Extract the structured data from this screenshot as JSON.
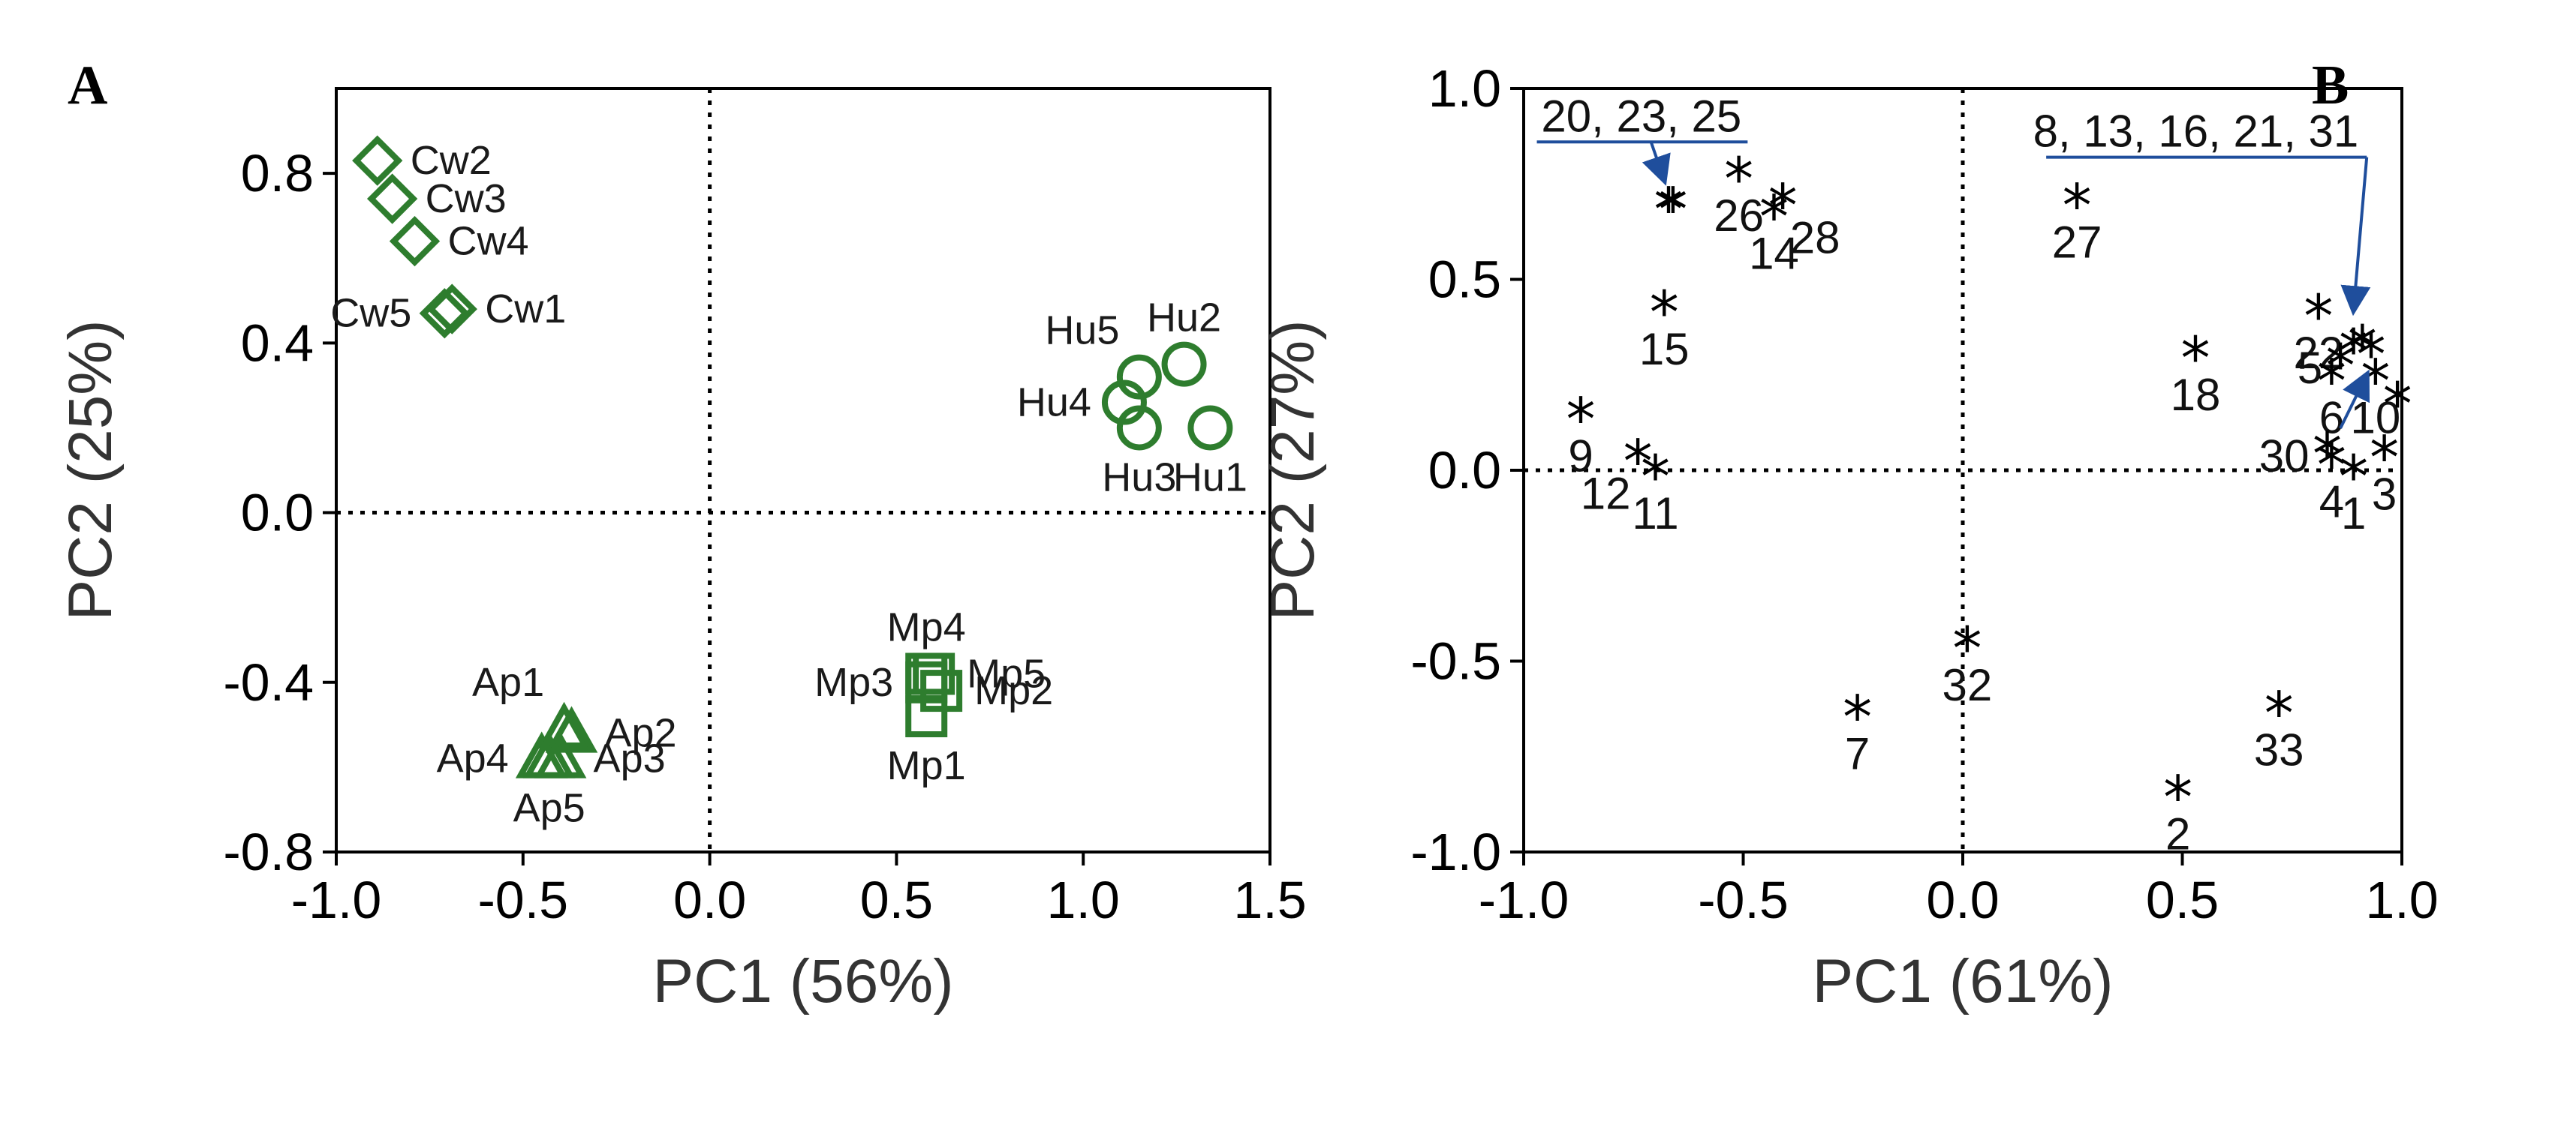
{
  "colors": {
    "marker": "#2e7d2e",
    "callout": "#1f4e9c",
    "axis": "#000000"
  },
  "chart_data": [
    {
      "panel": "A",
      "type": "scatter",
      "xlabel": "PC1 (56%)",
      "ylabel": "PC2 (25%)",
      "xlim": [
        -1.0,
        1.5
      ],
      "ylim": [
        -0.8,
        1.0
      ],
      "xticks": [
        {
          "v": -1.0,
          "t": "-1.0"
        },
        {
          "v": -0.5,
          "t": "-0.5"
        },
        {
          "v": 0.0,
          "t": "0.0"
        },
        {
          "v": 0.5,
          "t": "0.5"
        },
        {
          "v": 1.0,
          "t": "1.0"
        },
        {
          "v": 1.5,
          "t": "1.5"
        }
      ],
      "yticks": [
        {
          "v": 0.8,
          "t": "0.8"
        },
        {
          "v": 0.4,
          "t": "0.4"
        },
        {
          "v": 0.0,
          "t": "0.0"
        },
        {
          "v": -0.4,
          "t": "-0.4"
        },
        {
          "v": -0.8,
          "t": "-0.8"
        }
      ],
      "series": [
        {
          "name": "Cw",
          "marker": "diamond",
          "points": [
            {
              "label": "Cw1",
              "x": -0.69,
              "y": 0.48,
              "pos": "right"
            },
            {
              "label": "Cw2",
              "x": -0.89,
              "y": 0.83,
              "pos": "right"
            },
            {
              "label": "Cw3",
              "x": -0.85,
              "y": 0.74,
              "pos": "right"
            },
            {
              "label": "Cw4",
              "x": -0.79,
              "y": 0.64,
              "pos": "right"
            },
            {
              "label": "Cw5",
              "x": -0.71,
              "y": 0.47,
              "pos": "left"
            }
          ]
        },
        {
          "name": "Hu",
          "marker": "circle",
          "points": [
            {
              "label": "Hu1",
              "x": 1.34,
              "y": 0.2,
              "pos": "below"
            },
            {
              "label": "Hu2",
              "x": 1.27,
              "y": 0.35,
              "pos": "above"
            },
            {
              "label": "Hu3",
              "x": 1.15,
              "y": 0.2,
              "pos": "below"
            },
            {
              "label": "Hu4",
              "x": 1.11,
              "y": 0.26,
              "pos": "left"
            },
            {
              "label": "Hu5",
              "x": 1.15,
              "y": 0.32,
              "pos": "aboveleft"
            }
          ]
        },
        {
          "name": "Ap",
          "marker": "triangle",
          "points": [
            {
              "label": "Ap1",
              "x": -0.39,
              "y": -0.51,
              "pos": "aboveleft"
            },
            {
              "label": "Ap2",
              "x": -0.37,
              "y": -0.52,
              "pos": "right"
            },
            {
              "label": "Ap3",
              "x": -0.4,
              "y": -0.58,
              "pos": "right"
            },
            {
              "label": "Ap4",
              "x": -0.45,
              "y": -0.58,
              "pos": "left"
            },
            {
              "label": "Ap5",
              "x": -0.43,
              "y": -0.58,
              "pos": "below"
            }
          ]
        },
        {
          "name": "Mp",
          "marker": "square",
          "points": [
            {
              "label": "Mp1",
              "x": 0.58,
              "y": -0.48,
              "pos": "below"
            },
            {
              "label": "Mp2",
              "x": 0.62,
              "y": -0.42,
              "pos": "right"
            },
            {
              "label": "Mp3",
              "x": 0.58,
              "y": -0.4,
              "pos": "left"
            },
            {
              "label": "Mp4",
              "x": 0.58,
              "y": -0.38,
              "pos": "above"
            },
            {
              "label": "Mp5",
              "x": 0.6,
              "y": -0.38,
              "pos": "right"
            }
          ]
        }
      ]
    },
    {
      "panel": "B",
      "type": "scatter",
      "xlabel": "PC1 (61%)",
      "ylabel": "PC2 (27%)",
      "xlim": [
        -1.0,
        1.0
      ],
      "ylim": [
        -1.0,
        1.0
      ],
      "xticks": [
        {
          "v": -1.0,
          "t": "-1.0"
        },
        {
          "v": -0.5,
          "t": "-0.5"
        },
        {
          "v": 0.0,
          "t": "0.0"
        },
        {
          "v": 0.5,
          "t": "0.5"
        },
        {
          "v": 1.0,
          "t": "1.0"
        }
      ],
      "yticks": [
        {
          "v": 1.0,
          "t": "1.0"
        },
        {
          "v": 0.5,
          "t": "0.5"
        },
        {
          "v": 0.0,
          "t": "0.0"
        },
        {
          "v": -0.5,
          "t": "-0.5"
        },
        {
          "v": -1.0,
          "t": "-1.0"
        }
      ],
      "points": [
        {
          "label": "26",
          "x": -0.51,
          "y": 0.8,
          "pos": "below"
        },
        {
          "label": "28",
          "x": -0.41,
          "y": 0.73,
          "pos": "belowright"
        },
        {
          "label": "14",
          "x": -0.43,
          "y": 0.7,
          "pos": "below"
        },
        {
          "label": "27",
          "x": 0.26,
          "y": 0.73,
          "pos": "below"
        },
        {
          "label": "15",
          "x": -0.68,
          "y": 0.45,
          "pos": "below"
        },
        {
          "label": "18",
          "x": 0.53,
          "y": 0.33,
          "pos": "below"
        },
        {
          "label": "22",
          "x": 0.81,
          "y": 0.44,
          "pos": "below"
        },
        {
          "label": "5",
          "x": 0.86,
          "y": 0.31,
          "pos": "left"
        },
        {
          "label": "6",
          "x": 0.84,
          "y": 0.27,
          "pos": "below"
        },
        {
          "label": "10",
          "x": 0.94,
          "y": 0.27,
          "pos": "below"
        },
        {
          "label": "9",
          "x": -0.87,
          "y": 0.17,
          "pos": "below"
        },
        {
          "label": "12",
          "x": -0.74,
          "y": 0.06,
          "pos": "belowleft"
        },
        {
          "label": "11",
          "x": -0.7,
          "y": 0.02,
          "pos": "below"
        },
        {
          "label": "30",
          "x": 0.83,
          "y": 0.08,
          "pos": "left"
        },
        {
          "label": "4",
          "x": 0.84,
          "y": 0.05,
          "pos": "below"
        },
        {
          "label": "1",
          "x": 0.89,
          "y": 0.02,
          "pos": "below"
        },
        {
          "label": "3",
          "x": 0.96,
          "y": 0.07,
          "pos": "below"
        },
        {
          "label": "32",
          "x": 0.01,
          "y": -0.43,
          "pos": "below"
        },
        {
          "label": "7",
          "x": -0.24,
          "y": -0.61,
          "pos": "below"
        },
        {
          "label": "33",
          "x": 0.72,
          "y": -0.6,
          "pos": "below"
        },
        {
          "label": "2",
          "x": 0.49,
          "y": -0.82,
          "pos": "below"
        },
        {
          "label": "",
          "x": 0.99,
          "y": 0.21,
          "pos": "none"
        },
        {
          "label": "",
          "x": 0.91,
          "y": 0.36,
          "pos": "none"
        },
        {
          "label": "",
          "x": 0.89,
          "y": 0.35,
          "pos": "none"
        },
        {
          "label": "",
          "x": 0.93,
          "y": 0.34,
          "pos": "none"
        },
        {
          "label": "",
          "x": -0.66,
          "y": 0.72,
          "pos": "none"
        },
        {
          "label": "",
          "x": -0.67,
          "y": 0.72,
          "pos": "none"
        }
      ],
      "callouts": [
        {
          "text": "20, 23, 25",
          "x_text": -0.96,
          "line_start": -0.97,
          "line_end": -0.49,
          "y_line": 0.86,
          "arrow_end_x": -0.68,
          "arrow_end_y": 0.76
        },
        {
          "text": "8, 13, 16, 21, 31",
          "x_text": 0.16,
          "line_start": 0.19,
          "line_end": 0.92,
          "y_line": 0.82,
          "arrow_end_x": 0.89,
          "arrow_end_y": 0.42
        },
        {
          "text": "",
          "x_text": 0.0,
          "line_start": 0.0,
          "line_end": 0.0,
          "y_line": 0.0,
          "arrow_start_x": 0.86,
          "arrow_start_y": 0.11,
          "arrow_end_x": 0.92,
          "arrow_end_y": 0.25
        }
      ]
    }
  ]
}
